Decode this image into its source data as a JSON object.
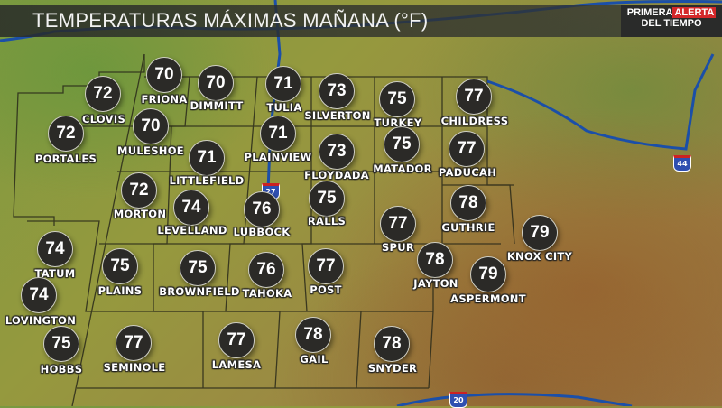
{
  "header": {
    "title": "TEMPERATURAS MÁXIMAS MAÑANA (°F)"
  },
  "logo": {
    "line1a": "PRIMERA",
    "line1b": "ALERTA",
    "line2": "DEL TIEMPO"
  },
  "highways": [
    "27",
    "44",
    "20"
  ],
  "colors": {
    "marker": "#2b2a27",
    "water": "#1b4fa8",
    "county_lines": "#2a2a1a"
  },
  "cities": [
    {
      "name": "FRIONA",
      "temp": "70"
    },
    {
      "name": "DIMMITT",
      "temp": "70"
    },
    {
      "name": "CLOVIS",
      "temp": "72"
    },
    {
      "name": "TULIA",
      "temp": "71"
    },
    {
      "name": "SILVERTON",
      "temp": "73"
    },
    {
      "name": "TURKEY",
      "temp": "75"
    },
    {
      "name": "CHILDRESS",
      "temp": "77"
    },
    {
      "name": "PORTALES",
      "temp": "72"
    },
    {
      "name": "MULESHOE",
      "temp": "70"
    },
    {
      "name": "PLAINVIEW",
      "temp": "71"
    },
    {
      "name": "FLOYDADA",
      "temp": "73"
    },
    {
      "name": "MATADOR",
      "temp": "75"
    },
    {
      "name": "PADUCAH",
      "temp": "77"
    },
    {
      "name": "LITTLEFIELD",
      "temp": "71"
    },
    {
      "name": "MORTON",
      "temp": "72"
    },
    {
      "name": "LEVELLAND",
      "temp": "74"
    },
    {
      "name": "LUBBOCK",
      "temp": "76"
    },
    {
      "name": "RALLS",
      "temp": "75"
    },
    {
      "name": "SPUR",
      "temp": "77"
    },
    {
      "name": "GUTHRIE",
      "temp": "78"
    },
    {
      "name": "KNOX CITY",
      "temp": "79"
    },
    {
      "name": "TATUM",
      "temp": "74"
    },
    {
      "name": "PLAINS",
      "temp": "75"
    },
    {
      "name": "BROWNFIELD",
      "temp": "75"
    },
    {
      "name": "TAHOKA",
      "temp": "76"
    },
    {
      "name": "POST",
      "temp": "77"
    },
    {
      "name": "JAYTON",
      "temp": "78"
    },
    {
      "name": "ASPERMONT",
      "temp": "79"
    },
    {
      "name": "LOVINGTON",
      "temp": "74"
    },
    {
      "name": "HOBBS",
      "temp": "75"
    },
    {
      "name": "SEMINOLE",
      "temp": "77"
    },
    {
      "name": "LAMESA",
      "temp": "77"
    },
    {
      "name": "GAIL",
      "temp": "78"
    },
    {
      "name": "SNYDER",
      "temp": "78"
    }
  ]
}
